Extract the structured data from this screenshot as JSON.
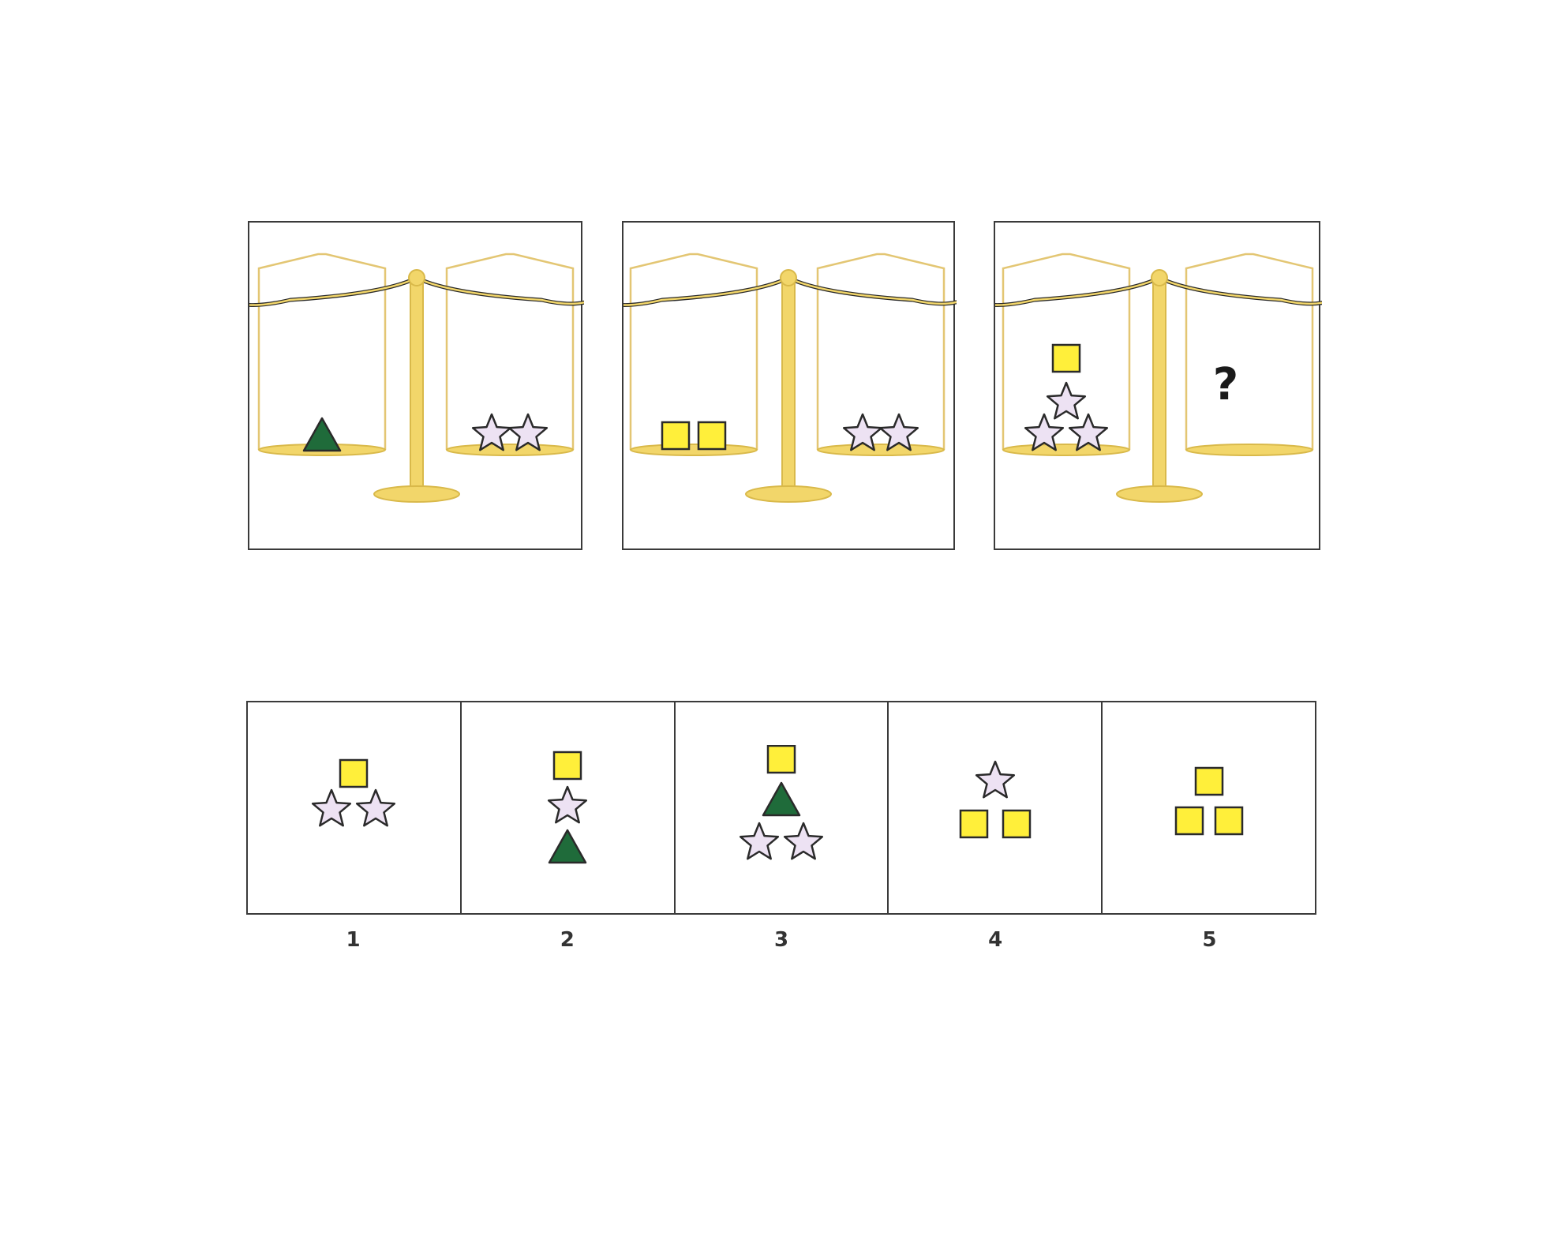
{
  "colors": {
    "scale": "#f2d66a",
    "scale_dark": "#d9b94a",
    "pan_wire": "#e3c673",
    "square": "#ffef3a",
    "star": "#ede2f3",
    "triangle": "#1f6b3a",
    "outline": "#2a2a2a"
  },
  "panels": [
    {
      "left_pan": [
        "triangle"
      ],
      "right_pan": [
        "star",
        "star"
      ]
    },
    {
      "left_pan": [
        "square",
        "square"
      ],
      "right_pan": [
        "star",
        "star"
      ]
    },
    {
      "left_pan": [
        "square",
        "star",
        "star",
        "star"
      ],
      "right_pan_unknown": "?"
    }
  ],
  "options": [
    {
      "label": "1",
      "shapes": [
        "square",
        "star",
        "star"
      ]
    },
    {
      "label": "2",
      "shapes": [
        "square",
        "star",
        "triangle"
      ]
    },
    {
      "label": "3",
      "shapes": [
        "square",
        "triangle",
        "star",
        "star"
      ]
    },
    {
      "label": "4",
      "shapes": [
        "star",
        "square",
        "square"
      ]
    },
    {
      "label": "5",
      "shapes": [
        "square",
        "square",
        "square"
      ]
    }
  ]
}
